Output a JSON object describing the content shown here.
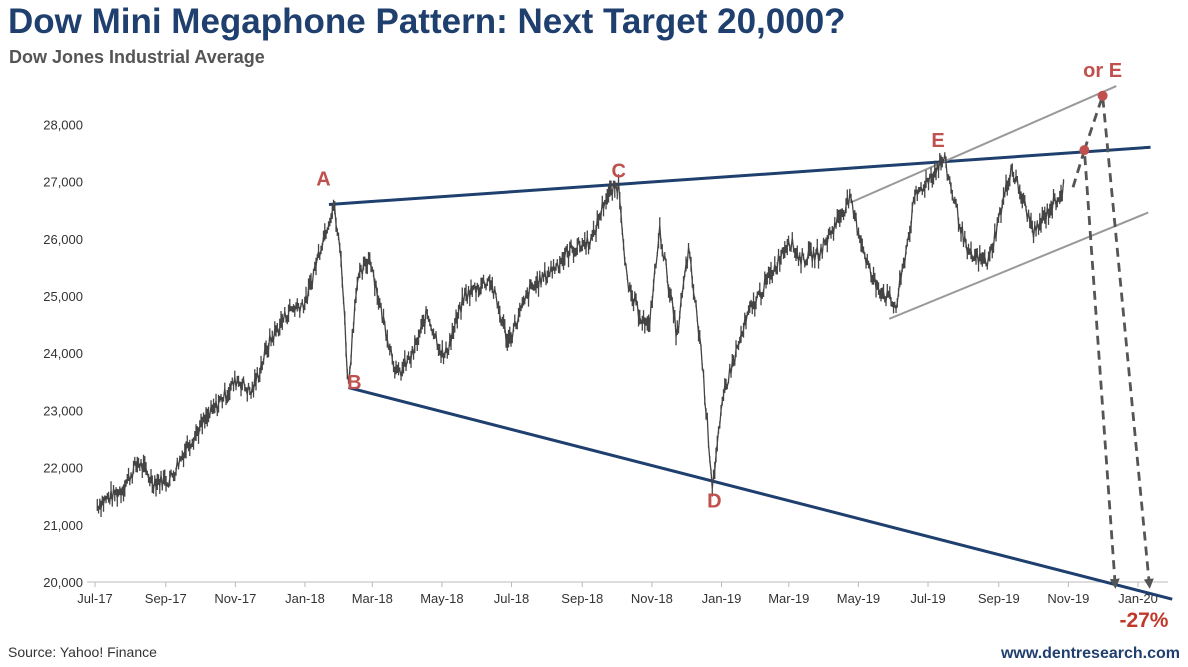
{
  "title": "Dow Mini Megaphone Pattern: Next Target 20,000?",
  "subtitle": "Dow Jones Industrial Average",
  "source": "Source: Yahoo! Finance",
  "website": "www.dentresearch.com",
  "colors": {
    "title": "#1f3f6e",
    "trendline": "#1f3f6e",
    "channel": "#999999",
    "price": "#444444",
    "label": "#c0504d",
    "projection": "#555555"
  },
  "chart_data": {
    "type": "line",
    "title": "Dow Mini Megaphone Pattern: Next Target 20,000?",
    "subtitle": "Dow Jones Industrial Average",
    "ylim": [
      20000,
      28500
    ],
    "yticks": [
      20000,
      21000,
      22000,
      23000,
      24000,
      25000,
      26000,
      27000,
      28000
    ],
    "ytick_labels": [
      "20,000",
      "21,000",
      "22,000",
      "23,000",
      "24,000",
      "25,000",
      "26,000",
      "27,000",
      "28,000"
    ],
    "xlim": [
      "2017-07",
      "2020-01"
    ],
    "xticks": [
      "2017-07",
      "2017-09",
      "2017-11",
      "2018-01",
      "2018-03",
      "2018-05",
      "2018-07",
      "2018-09",
      "2018-11",
      "2019-01",
      "2019-03",
      "2019-05",
      "2019-07",
      "2019-09",
      "2019-11",
      "2020-01"
    ],
    "xtick_labels": [
      "Jul-17",
      "Sep-17",
      "Nov-17",
      "Jan-18",
      "Mar-18",
      "May-18",
      "Jul-18",
      "Sep-18",
      "Nov-18",
      "Jan-19",
      "Mar-19",
      "May-19",
      "Jul-19",
      "Sep-19",
      "Nov-19",
      "Jan-20"
    ],
    "grid": false,
    "series": [
      {
        "values": [
          [
            "2017-07-03",
            21350
          ],
          [
            "2017-07-24",
            21600
          ],
          [
            "2017-08-08",
            22100
          ],
          [
            "2017-08-21",
            21750
          ],
          [
            "2017-09-05",
            21800
          ],
          [
            "2017-09-20",
            22400
          ],
          [
            "2017-10-05",
            22800
          ],
          [
            "2017-10-20",
            23200
          ],
          [
            "2017-11-03",
            23550
          ],
          [
            "2017-11-15",
            23300
          ],
          [
            "2017-12-01",
            24200
          ],
          [
            "2017-12-18",
            24750
          ],
          [
            "2018-01-02",
            24900
          ],
          [
            "2018-01-15",
            25900
          ],
          [
            "2018-01-26",
            26600
          ],
          [
            "2018-02-02",
            25600
          ],
          [
            "2018-02-08",
            23400
          ],
          [
            "2018-02-15",
            25200
          ],
          [
            "2018-02-27",
            25700
          ],
          [
            "2018-03-08",
            24800
          ],
          [
            "2018-03-23",
            23600
          ],
          [
            "2018-04-06",
            24000
          ],
          [
            "2018-04-18",
            24700
          ],
          [
            "2018-05-03",
            23900
          ],
          [
            "2018-05-21",
            25000
          ],
          [
            "2018-06-12",
            25300
          ],
          [
            "2018-06-28",
            24200
          ],
          [
            "2018-07-17",
            25100
          ],
          [
            "2018-08-02",
            25400
          ],
          [
            "2018-08-22",
            25800
          ],
          [
            "2018-09-10",
            26000
          ],
          [
            "2018-09-21",
            26700
          ],
          [
            "2018-10-03",
            26950
          ],
          [
            "2018-10-11",
            25100
          ],
          [
            "2018-10-29",
            24400
          ],
          [
            "2018-11-08",
            26150
          ],
          [
            "2018-11-23",
            24300
          ],
          [
            "2018-12-03",
            25800
          ],
          [
            "2018-12-14",
            24100
          ],
          [
            "2018-12-24",
            21700
          ],
          [
            "2019-01-04",
            23400
          ],
          [
            "2019-01-25",
            24700
          ],
          [
            "2019-02-14",
            25400
          ],
          [
            "2019-03-01",
            26000
          ],
          [
            "2019-03-11",
            25650
          ],
          [
            "2019-03-28",
            25750
          ],
          [
            "2019-04-23",
            26700
          ],
          [
            "2019-05-13",
            25300
          ],
          [
            "2019-06-03",
            24800
          ],
          [
            "2019-06-20",
            26750
          ],
          [
            "2019-07-15",
            27400
          ],
          [
            "2019-08-05",
            25700
          ],
          [
            "2019-08-23",
            25600
          ],
          [
            "2019-09-12",
            27250
          ],
          [
            "2019-10-02",
            26100
          ],
          [
            "2019-10-28",
            26900
          ]
        ]
      }
    ],
    "annotations": [
      {
        "label": "A",
        "x": "2018-01-26",
        "y": 26616
      },
      {
        "label": "B",
        "x": "2018-02-08",
        "y": 23860
      },
      {
        "label": "C",
        "x": "2018-10-03",
        "y": 26828
      },
      {
        "label": "D",
        "x": "2018-12-24",
        "y": 21792
      },
      {
        "label": "E",
        "x": "2019-07-15",
        "y": 27359
      },
      {
        "label": "or E",
        "x": "2019-12-01",
        "y": 28500
      },
      {
        "label": "-27%",
        "x": "2020-01-15",
        "y": 19950
      }
    ],
    "trendlines": [
      {
        "kind": "megaphone-upper",
        "points": [
          [
            "2018-01-22",
            26600
          ],
          [
            "2020-01-12",
            27600
          ]
        ]
      },
      {
        "kind": "megaphone-lower",
        "points": [
          [
            "2018-02-08",
            23400
          ],
          [
            "2020-01-31",
            19700
          ]
        ]
      },
      {
        "kind": "channel-upper",
        "points": [
          [
            "2019-04-26",
            26650
          ],
          [
            "2019-12-13",
            28670
          ]
        ]
      },
      {
        "kind": "channel-lower",
        "points": [
          [
            "2019-05-28",
            24600
          ],
          [
            "2020-01-10",
            26460
          ]
        ]
      }
    ],
    "projections": [
      {
        "path": [
          [
            "2019-11-05",
            26900
          ],
          [
            "2019-11-15",
            27550
          ],
          [
            "2019-12-12",
            19950
          ]
        ]
      },
      {
        "path": [
          [
            "2019-11-15",
            27550
          ],
          [
            "2019-12-01",
            28500
          ],
          [
            "2020-01-11",
            19950
          ]
        ]
      }
    ],
    "target_points": [
      {
        "x": "2019-11-15",
        "y": 27550
      },
      {
        "x": "2019-12-01",
        "y": 28500
      }
    ]
  }
}
